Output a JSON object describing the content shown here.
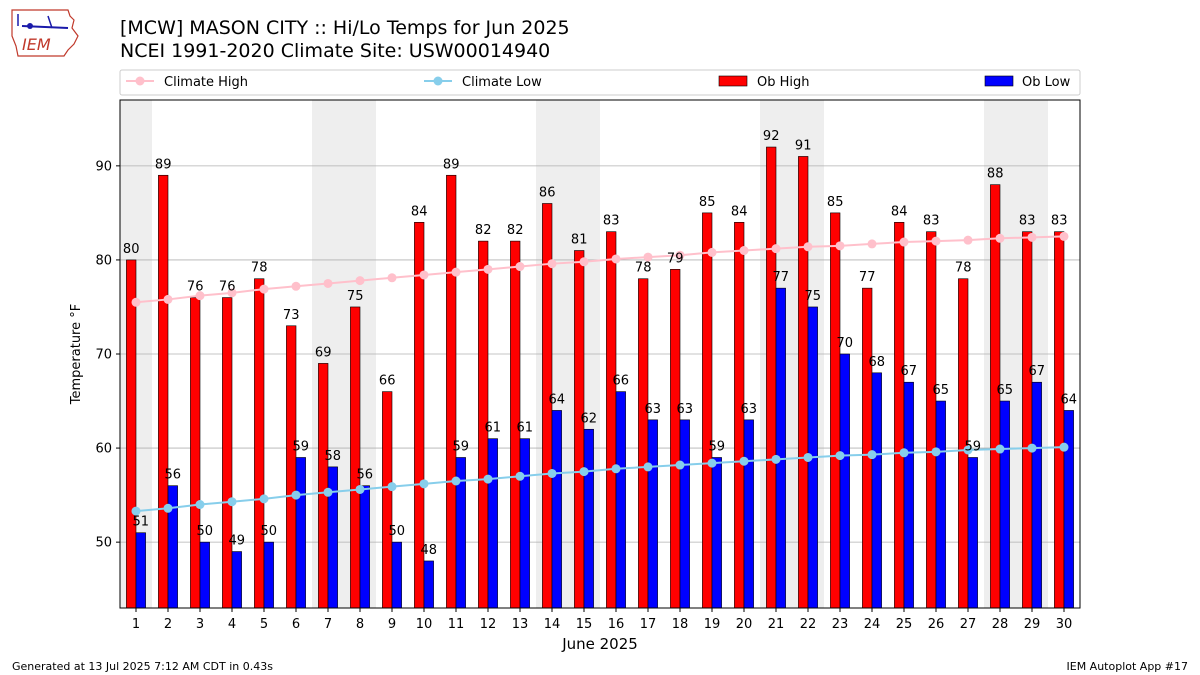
{
  "header": {
    "title_line1": "[MCW] MASON CITY :: Hi/Lo Temps for Jun 2025",
    "title_line2": "NCEI 1991-2020 Climate Site: USW00014940",
    "logo_text": "IEM"
  },
  "footer": {
    "generated": "Generated at 13 Jul 2025 7:12 AM CDT in 0.43s",
    "app": "IEM Autoplot App #17"
  },
  "colors": {
    "ob_high": "#ff0000",
    "ob_low": "#0000ff",
    "climate_high": "#ffc0cb",
    "climate_low": "#87ceeb",
    "weekend_shade": "#eeeeee",
    "grid": "#b0b0b0"
  },
  "chart_data": {
    "type": "bar",
    "title": "[MCW] MASON CITY :: Hi/Lo Temps for Jun 2025",
    "xlabel": "June 2025",
    "ylabel": "Temperature °F",
    "ylim": [
      43,
      97
    ],
    "yticks": [
      50,
      60,
      70,
      80,
      90
    ],
    "grid": true,
    "legend_position": "top",
    "categories": [
      "1",
      "2",
      "3",
      "4",
      "5",
      "6",
      "7",
      "8",
      "9",
      "10",
      "11",
      "12",
      "13",
      "14",
      "15",
      "16",
      "17",
      "18",
      "19",
      "20",
      "21",
      "22",
      "23",
      "24",
      "25",
      "26",
      "27",
      "28",
      "29",
      "30"
    ],
    "shaded_days": [
      1,
      7,
      8,
      14,
      15,
      21,
      22,
      28,
      29
    ],
    "series": [
      {
        "name": "Ob High",
        "kind": "bar",
        "values": [
          80,
          89,
          76,
          76,
          78,
          73,
          69,
          75,
          66,
          84,
          89,
          82,
          82,
          86,
          81,
          83,
          78,
          79,
          85,
          84,
          92,
          91,
          85,
          77,
          84,
          83,
          78,
          88,
          83,
          83
        ]
      },
      {
        "name": "Ob Low",
        "kind": "bar",
        "values": [
          51,
          56,
          50,
          49,
          50,
          59,
          58,
          56,
          50,
          48,
          59,
          61,
          61,
          64,
          62,
          66,
          63,
          63,
          59,
          63,
          77,
          75,
          70,
          68,
          67,
          65,
          59,
          65,
          67,
          64
        ]
      },
      {
        "name": "Climate High",
        "kind": "line",
        "values": [
          75.5,
          75.8,
          76.2,
          76.5,
          76.9,
          77.2,
          77.5,
          77.8,
          78.1,
          78.4,
          78.7,
          79.0,
          79.3,
          79.6,
          79.8,
          80.1,
          80.3,
          80.5,
          80.8,
          81.0,
          81.2,
          81.4,
          81.5,
          81.7,
          81.9,
          82.0,
          82.1,
          82.3,
          82.4,
          82.5
        ]
      },
      {
        "name": "Climate Low",
        "kind": "line",
        "values": [
          53.3,
          53.6,
          54.0,
          54.3,
          54.6,
          55.0,
          55.3,
          55.6,
          55.9,
          56.2,
          56.5,
          56.7,
          57.0,
          57.3,
          57.5,
          57.8,
          58.0,
          58.2,
          58.4,
          58.6,
          58.8,
          59.0,
          59.2,
          59.3,
          59.5,
          59.6,
          59.8,
          59.9,
          60.0,
          60.1
        ]
      }
    ]
  }
}
